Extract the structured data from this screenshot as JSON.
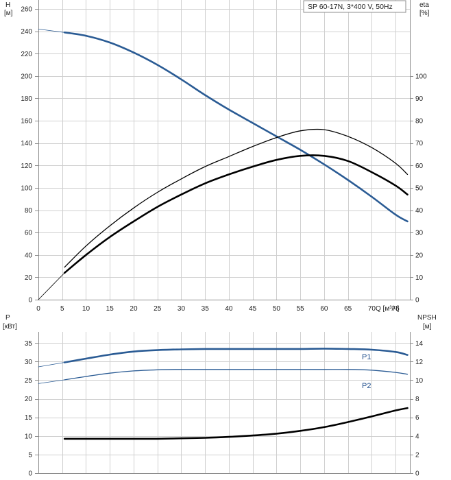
{
  "model_label": "SP 60-17N, 3*400 V, 50Hz",
  "colors": {
    "blue": "#2a5b94",
    "black": "#000000",
    "grid": "#cfcfcf",
    "frame": "#8c8c8c"
  },
  "top_axes": {
    "left_label_line1": "H",
    "left_label_line2": "[м]",
    "right_label_line1": "eta",
    "right_label_line2": "[%]",
    "left_ticks": [
      "0",
      "20",
      "40",
      "60",
      "80",
      "100",
      "120",
      "140",
      "160",
      "180",
      "200",
      "220",
      "240",
      "260"
    ],
    "right_ticks": [
      "0",
      "10",
      "20",
      "30",
      "40",
      "50",
      "60",
      "70",
      "80",
      "90",
      "100"
    ],
    "x_ticks": [
      "0",
      "5",
      "10",
      "15",
      "20",
      "25",
      "30",
      "35",
      "40",
      "45",
      "50",
      "55",
      "60",
      "65",
      "70",
      "75"
    ],
    "x_label": "Q [м³/ч]"
  },
  "bottom_axes": {
    "left_label_line1": "P",
    "left_label_line2": "[кВт]",
    "right_label_line1": "NPSH",
    "right_label_line2": "[м]",
    "left_ticks": [
      "0",
      "5",
      "10",
      "15",
      "20",
      "25",
      "30",
      "35"
    ],
    "right_ticks": [
      "0",
      "2",
      "4",
      "6",
      "8",
      "10",
      "12",
      "14"
    ],
    "p1_label": "P1",
    "p2_label": "P2"
  },
  "chart_data": [
    {
      "type": "line",
      "xlabel": "Q [м³/ч]",
      "ylabel": "H [м]",
      "y2label": "eta [%]",
      "xlim": [
        0,
        78
      ],
      "ylim": [
        0,
        268
      ],
      "y2lim": [
        0,
        134
      ],
      "grid": true,
      "series": [
        {
          "axis": "left",
          "color": "#2a5b94",
          "style": "thick",
          "x": [
            5.5,
            10,
            15,
            20,
            25,
            30,
            35,
            40,
            45,
            50,
            55,
            60,
            65,
            70,
            75,
            77.5
          ],
          "y": [
            239,
            236,
            230,
            221,
            210,
            197,
            183,
            170,
            158,
            146,
            134,
            121,
            107,
            92,
            76,
            70
          ]
        },
        {
          "axis": "left",
          "color": "#2a5b94",
          "style": "thin-extension",
          "x": [
            0,
            5.5
          ],
          "y": [
            242,
            239
          ]
        },
        {
          "axis": "right",
          "color": "#000000",
          "style": "thick",
          "x": [
            5.5,
            10,
            15,
            20,
            25,
            30,
            35,
            40,
            45,
            50,
            55,
            60,
            65,
            70,
            75,
            77.5
          ],
          "y": [
            12,
            20,
            28,
            35,
            41.5,
            47,
            52,
            56,
            59.5,
            62.5,
            64.3,
            64.3,
            62,
            57,
            51,
            47
          ]
        },
        {
          "axis": "right",
          "color": "#000000",
          "style": "thin",
          "x": [
            5.5,
            10,
            15,
            20,
            25,
            30,
            35,
            40,
            45,
            50,
            55,
            60,
            65,
            70,
            75,
            77.5
          ],
          "y": [
            14.5,
            24,
            33,
            41,
            48,
            54,
            59.5,
            64,
            68.5,
            72.5,
            75.5,
            76,
            73,
            68,
            61,
            56
          ]
        },
        {
          "axis": "right",
          "color": "#000000",
          "style": "thin-extension",
          "x": [
            0,
            5.5
          ],
          "y": [
            0,
            12
          ]
        }
      ]
    },
    {
      "type": "line",
      "xlabel": "Q [м³/ч]",
      "ylabel": "P [кВт]",
      "y2label": "NPSH [м]",
      "xlim": [
        0,
        78
      ],
      "ylim": [
        0,
        38
      ],
      "y2lim": [
        0,
        15.2
      ],
      "grid": true,
      "series": [
        {
          "name": "P1",
          "axis": "left",
          "color": "#2a5b94",
          "style": "thick",
          "x": [
            5.5,
            10,
            15,
            20,
            25,
            30,
            35,
            40,
            45,
            50,
            55,
            60,
            65,
            70,
            75,
            77.5
          ],
          "y": [
            29.8,
            30.8,
            31.9,
            32.7,
            33.1,
            33.3,
            33.4,
            33.4,
            33.4,
            33.4,
            33.4,
            33.5,
            33.4,
            33.2,
            32.6,
            31.8
          ]
        },
        {
          "axis": "left",
          "color": "#2a5b94",
          "style": "thin-extension",
          "x": [
            0,
            5.5
          ],
          "y": [
            28.6,
            29.8
          ]
        },
        {
          "name": "P2",
          "axis": "left",
          "color": "#2a5b94",
          "style": "thin",
          "x": [
            5.5,
            10,
            15,
            20,
            25,
            30,
            35,
            40,
            45,
            50,
            55,
            60,
            65,
            70,
            75,
            77.5
          ],
          "y": [
            25.1,
            26,
            26.9,
            27.5,
            27.8,
            27.9,
            27.9,
            27.9,
            27.9,
            27.9,
            27.9,
            27.9,
            27.9,
            27.7,
            27.1,
            26.6
          ]
        },
        {
          "axis": "left",
          "color": "#2a5b94",
          "style": "thin-extension",
          "x": [
            0,
            5.5
          ],
          "y": [
            24.1,
            25.1
          ]
        },
        {
          "axis": "right",
          "color": "#000000",
          "style": "thick",
          "x": [
            5.5,
            10,
            15,
            20,
            25,
            30,
            35,
            40,
            45,
            50,
            55,
            60,
            65,
            70,
            75,
            77.5
          ],
          "y": [
            3.7,
            3.7,
            3.7,
            3.7,
            3.7,
            3.75,
            3.8,
            3.9,
            4.05,
            4.25,
            4.55,
            4.95,
            5.5,
            6.1,
            6.75,
            7.0
          ]
        }
      ]
    }
  ]
}
